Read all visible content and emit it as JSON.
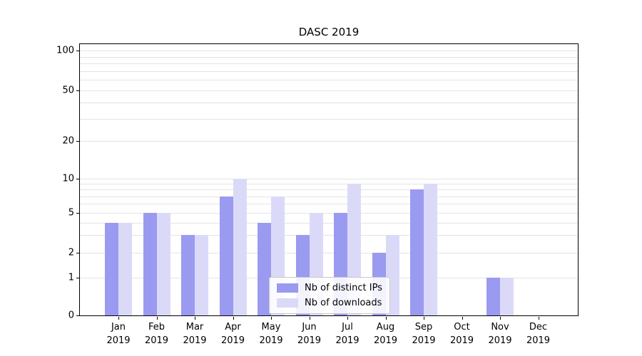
{
  "chart_data": {
    "type": "bar",
    "title": "DASC 2019",
    "categories": [
      "Jan",
      "Feb",
      "Mar",
      "Apr",
      "May",
      "Jun",
      "Jul",
      "Aug",
      "Sep",
      "Oct",
      "Nov",
      "Dec"
    ],
    "x_axis": {
      "year": "2019"
    },
    "series": [
      {
        "name": "Nb of distinct IPs",
        "color": "#9a9af0",
        "values": [
          4,
          5,
          3,
          7,
          4,
          3,
          5,
          2,
          8,
          0,
          1,
          0
        ]
      },
      {
        "name": "Nb of downloads",
        "color": "#dadaf8",
        "values": [
          4,
          5,
          3,
          10,
          7,
          5,
          9,
          3,
          9,
          0,
          1,
          0
        ]
      }
    ],
    "y_axis": {
      "scale": "log-like",
      "ticks": [
        100,
        50,
        20,
        10,
        5,
        2,
        1,
        0
      ],
      "minor_gridlines": [
        3,
        4,
        6,
        7,
        8,
        9,
        30,
        40,
        60,
        70,
        80,
        90
      ]
    },
    "legend": {
      "position": "lower center"
    },
    "grid": true
  }
}
